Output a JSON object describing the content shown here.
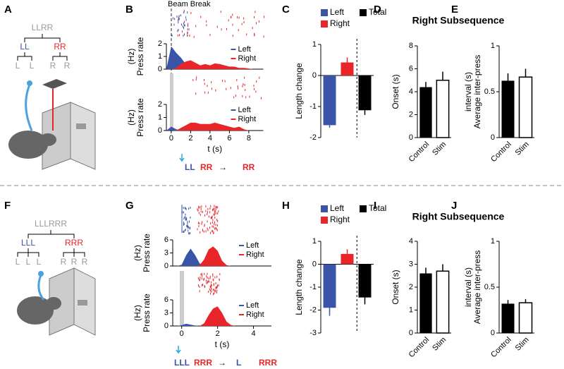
{
  "panel_labels": [
    "A",
    "B",
    "C",
    "D",
    "E",
    "F",
    "G",
    "H",
    "I",
    "J"
  ],
  "beam_break": "Beam Break",
  "subsequence_titles": [
    "Right Subsequence",
    "Right Subsequence"
  ],
  "trees": [
    {
      "root": "LLRR",
      "groups": [
        {
          "label": "LL",
          "leaves": [
            "L",
            "L"
          ]
        },
        {
          "label": "RR",
          "leaves": [
            "R",
            "R"
          ]
        }
      ]
    },
    {
      "root": "LLLRRR",
      "groups": [
        {
          "label": "LLL",
          "leaves": [
            "L",
            "L",
            "L"
          ]
        },
        {
          "label": "RRR",
          "leaves": [
            "R",
            "R",
            "R"
          ]
        }
      ]
    }
  ],
  "sequences": [
    [
      {
        "text": "LL",
        "color": "#3a55a8"
      },
      {
        "text": "RR",
        "color": "#e8262a"
      },
      {
        "text": "→",
        "color": "#000000"
      },
      {
        "text": "RR",
        "color": "#e8262a"
      }
    ],
    [
      {
        "text": "LLL",
        "color": "#3a55a8"
      },
      {
        "text": "RRR",
        "color": "#e8262a"
      },
      {
        "text": "→",
        "color": "#000000"
      },
      {
        "text": "L",
        "color": "#3a55a8"
      },
      {
        "text": "RRR",
        "color": "#e8262a"
      }
    ]
  ],
  "chart_data": [
    {
      "type": "area",
      "ylabel": [
        "Press rate",
        "(Hz)"
      ],
      "xlim": [
        -0.5,
        9.5
      ],
      "ylim": [
        0,
        2
      ],
      "yticks": [
        0,
        1,
        2
      ],
      "legend": "upper right",
      "x": [
        -0.5,
        0,
        0.5,
        1,
        1.5,
        2,
        2.5,
        3,
        3.5,
        4,
        4.5,
        5,
        5.5,
        6,
        6.5,
        7,
        7.5,
        8,
        8.5,
        9
      ],
      "series": [
        {
          "name": "Left",
          "color": "#3a55a8",
          "values": [
            0,
            1.8,
            1.3,
            0.9,
            0.4,
            0.1,
            0,
            0,
            0,
            0,
            0,
            0,
            0,
            0,
            0,
            0,
            0,
            0,
            0,
            0
          ]
        },
        {
          "name": "Right",
          "color": "#e8262a",
          "values": [
            0,
            0,
            0.1,
            0.4,
            0.6,
            0.7,
            0.5,
            0.3,
            0.4,
            0.3,
            0.45,
            0.4,
            0.3,
            0.2,
            0.2,
            0.1,
            0.1,
            0.05,
            0,
            0
          ]
        }
      ]
    },
    {
      "type": "area",
      "ylabel": [
        "Press rate",
        "(Hz)"
      ],
      "xlabel": "t (s)",
      "xlim": [
        -0.5,
        9.5
      ],
      "ylim": [
        0,
        2
      ],
      "yticks": [
        0,
        1,
        2
      ],
      "xticks": [
        0,
        2,
        4,
        6,
        8
      ],
      "legend": "upper right",
      "x": [
        -0.5,
        0,
        0.5,
        1,
        1.5,
        2,
        2.5,
        3,
        3.5,
        4,
        4.5,
        5,
        5.5,
        6,
        6.5,
        7,
        7.5,
        8,
        8.5,
        9
      ],
      "series": [
        {
          "name": "Left",
          "color": "#3a55a8",
          "values": [
            0,
            0.3,
            0.1,
            0,
            0,
            0,
            0,
            0,
            0,
            0,
            0,
            0,
            0,
            0,
            0,
            0,
            0,
            0,
            0,
            0
          ]
        },
        {
          "name": "Right",
          "color": "#e8262a",
          "values": [
            0,
            0,
            0,
            0.2,
            0.4,
            0.6,
            0.6,
            0.5,
            0.5,
            0.5,
            0.6,
            0.5,
            0.4,
            0.3,
            0.2,
            0.3,
            0.1,
            0,
            0,
            0
          ]
        }
      ]
    },
    {
      "type": "bar",
      "ylabel": "Length change",
      "ylim": [
        -2,
        1
      ],
      "yticks": [
        -2,
        -1,
        0,
        1
      ],
      "legend": "top",
      "categories": [
        "Left",
        "Right",
        "Total"
      ],
      "colors": [
        "#3a55a8",
        "#e8262a",
        "#000000"
      ],
      "values": [
        -1.6,
        0.42,
        -1.12
      ],
      "errors": [
        0.08,
        0.16,
        0.15
      ]
    },
    {
      "type": "bar",
      "ylabel": "Onset (s)",
      "ylim": [
        0,
        8
      ],
      "yticks": [
        0,
        2,
        4,
        6,
        8
      ],
      "categories": [
        "Control",
        "Stim"
      ],
      "colors": [
        "#000000",
        "#ffffff"
      ],
      "values": [
        4.4,
        5.0
      ],
      "errors": [
        0.45,
        0.75
      ]
    },
    {
      "type": "bar",
      "ylabel": [
        "Average inter-press",
        "interval (s)"
      ],
      "ylim": [
        0,
        1
      ],
      "yticks": [
        0,
        0.5,
        1
      ],
      "categories": [
        "Control",
        "Stim"
      ],
      "colors": [
        "#000000",
        "#ffffff"
      ],
      "values": [
        0.62,
        0.66
      ],
      "errors": [
        0.08,
        0.09
      ]
    },
    {
      "type": "area",
      "ylabel": [
        "Press rate",
        "(Hz)"
      ],
      "xlim": [
        -0.5,
        5
      ],
      "ylim": [
        0,
        6
      ],
      "yticks": [
        0,
        3,
        6
      ],
      "legend": "upper right",
      "x": [
        -0.5,
        -0.25,
        0,
        0.25,
        0.5,
        0.75,
        1,
        1.25,
        1.5,
        1.75,
        2,
        2.25,
        2.5,
        2.75,
        3
      ],
      "series": [
        {
          "name": "Left",
          "color": "#3a55a8",
          "values": [
            0,
            0,
            0.3,
            2.5,
            4,
            2.5,
            0.6,
            0,
            0,
            0,
            0,
            0,
            0,
            0,
            0
          ]
        },
        {
          "name": "Right",
          "color": "#e8262a",
          "values": [
            0,
            0,
            0,
            0,
            0,
            0,
            0.2,
            1.5,
            3.8,
            4.5,
            3.5,
            1.2,
            0.2,
            0,
            0
          ]
        }
      ]
    },
    {
      "type": "area",
      "ylabel": [
        "Press rate",
        "(Hz)"
      ],
      "xlabel": "t (s)",
      "xlim": [
        -0.5,
        5
      ],
      "ylim": [
        0,
        6
      ],
      "yticks": [
        0,
        3,
        6
      ],
      "xticks": [
        0,
        2,
        4
      ],
      "legend": "upper right",
      "x": [
        -0.5,
        -0.25,
        0,
        0.25,
        0.5,
        0.75,
        1,
        1.25,
        1.5,
        1.75,
        2,
        2.25,
        2.5,
        2.75,
        3
      ],
      "series": [
        {
          "name": "Left",
          "color": "#3a55a8",
          "values": [
            0,
            0,
            0.2,
            0.5,
            0.3,
            0.1,
            0,
            0,
            0,
            0,
            0,
            0,
            0,
            0,
            0
          ]
        },
        {
          "name": "Right",
          "color": "#e8262a",
          "values": [
            0,
            0,
            0,
            0,
            0,
            0,
            0,
            0.6,
            2.5,
            4,
            4.5,
            3,
            1,
            0.2,
            0
          ]
        }
      ]
    },
    {
      "type": "bar",
      "ylabel": "Length change",
      "ylim": [
        -3,
        1
      ],
      "yticks": [
        -3,
        -2,
        -1,
        0,
        1
      ],
      "legend": "top",
      "categories": [
        "Left",
        "Right",
        "Total"
      ],
      "colors": [
        "#3a55a8",
        "#e8262a",
        "#000000"
      ],
      "values": [
        -1.9,
        0.45,
        -1.45
      ],
      "errors": [
        0.35,
        0.2,
        0.3
      ]
    },
    {
      "type": "bar",
      "ylabel": "Onset (s)",
      "ylim": [
        0,
        4
      ],
      "yticks": [
        0,
        1,
        2,
        3,
        4
      ],
      "categories": [
        "Control",
        "Stim"
      ],
      "colors": [
        "#000000",
        "#ffffff"
      ],
      "values": [
        2.6,
        2.7
      ],
      "errors": [
        0.25,
        0.3
      ]
    },
    {
      "type": "bar",
      "ylabel": [
        "Average inter-press",
        "interval (s)"
      ],
      "ylim": [
        0,
        1
      ],
      "yticks": [
        0,
        0.5,
        1
      ],
      "categories": [
        "Control",
        "Stim"
      ],
      "colors": [
        "#000000",
        "#ffffff"
      ],
      "values": [
        0.32,
        0.33
      ],
      "errors": [
        0.04,
        0.04
      ]
    }
  ]
}
